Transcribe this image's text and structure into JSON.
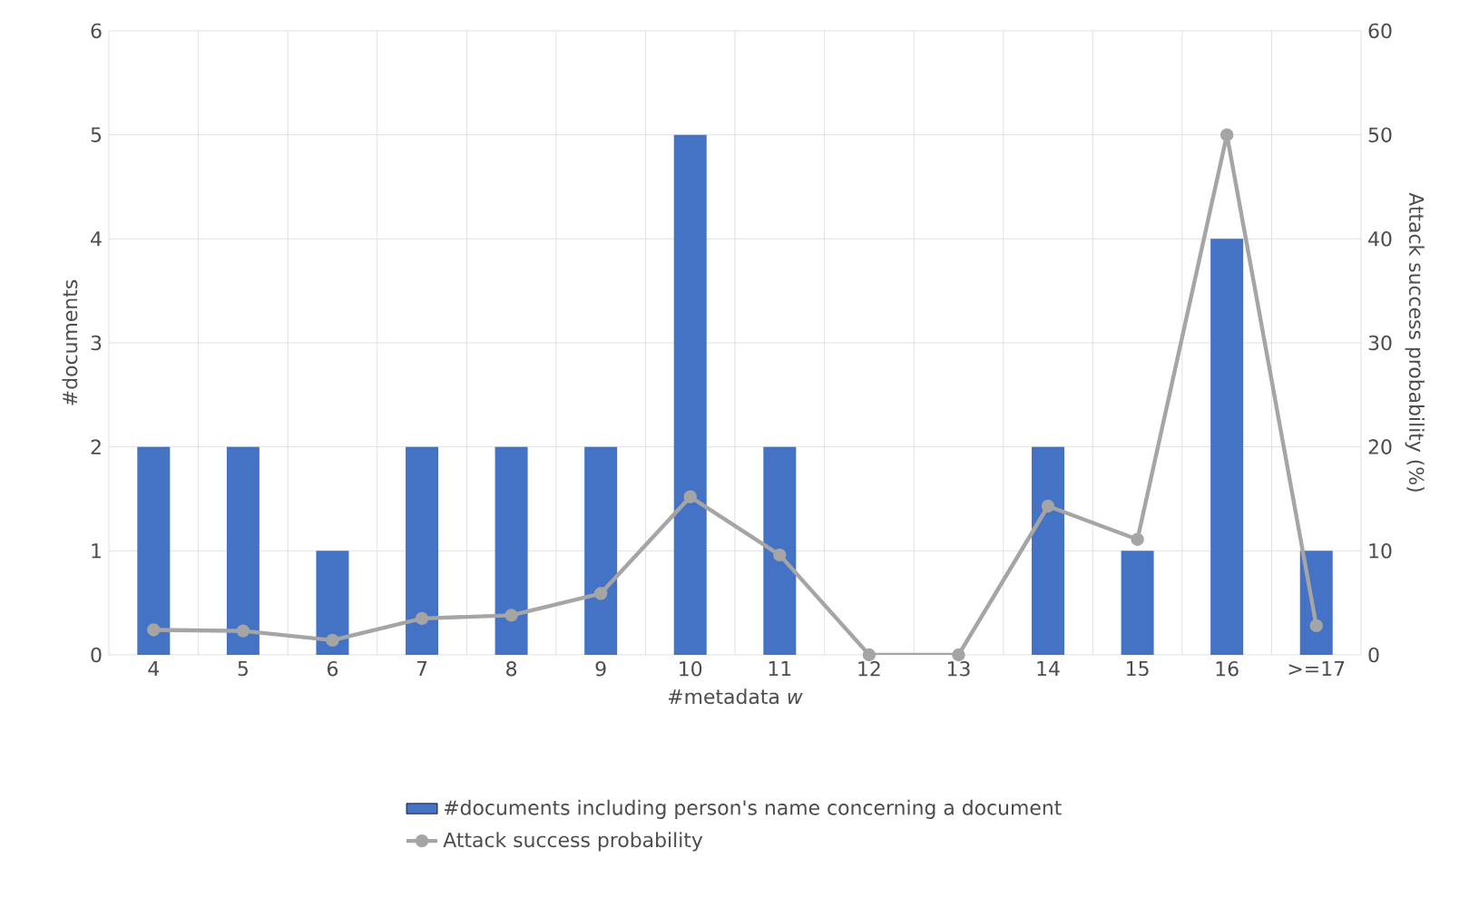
{
  "chart_data": {
    "type": "bar",
    "xlabel": "#metadata *w*",
    "ylabel": "#documents",
    "y2label": "Attack success probability (%)",
    "categories": [
      "4",
      "5",
      "6",
      "7",
      "8",
      "9",
      "10",
      "11",
      "12",
      "13",
      "14",
      "15",
      "16",
      ">=17"
    ],
    "series": [
      {
        "name": "#documents including person's name concerning a document",
        "color": "#4472c4",
        "values": [
          2,
          2,
          1,
          2,
          2,
          2,
          5,
          2,
          0,
          0,
          2,
          1,
          4,
          1
        ]
      },
      {
        "name": "Attack success probability",
        "type": "line",
        "axis": "y2",
        "color": "#a5a5a5",
        "marker": "circle",
        "values": [
          2.4,
          2.3,
          1.4,
          3.5,
          3.8,
          5.9,
          15.2,
          9.6,
          0,
          0,
          14.3,
          11.1,
          50,
          2.8
        ]
      }
    ],
    "ylim": [
      0,
      6
    ],
    "yticks": [
      0,
      1,
      2,
      3,
      4,
      5,
      6
    ],
    "y2lim": [
      0,
      60
    ],
    "y2ticks": [
      0,
      10,
      20,
      30,
      40,
      50,
      60
    ],
    "grid": true,
    "legend": "bottom"
  }
}
